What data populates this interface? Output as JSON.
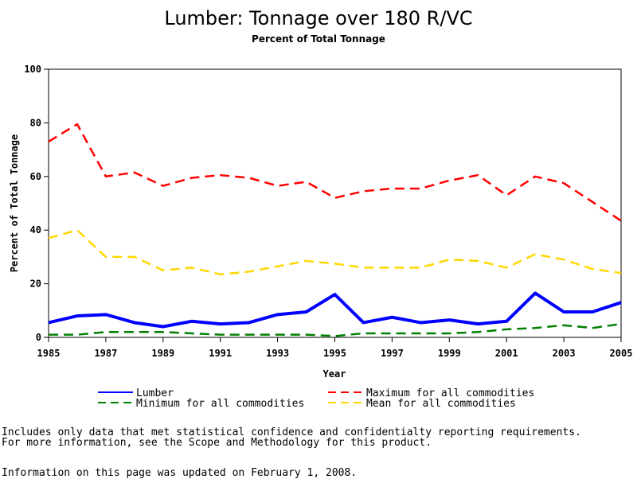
{
  "chart_data": {
    "type": "line",
    "title": "Lumber: Tonnage over 180 R/VC",
    "subtitle": "Percent of Total Tonnage",
    "xlabel": "Year",
    "ylabel": "Percent of Total Tonnage",
    "xlim": [
      1985,
      2005
    ],
    "ylim": [
      0,
      100
    ],
    "x_ticks": [
      1985,
      1987,
      1989,
      1991,
      1993,
      1995,
      1997,
      1999,
      2001,
      2003,
      2005
    ],
    "y_ticks": [
      0,
      20,
      40,
      60,
      80,
      100
    ],
    "grid": false,
    "legend_position": "bottom",
    "x": [
      1985,
      1986,
      1987,
      1988,
      1989,
      1990,
      1991,
      1992,
      1993,
      1994,
      1995,
      1996,
      1997,
      1998,
      1999,
      2000,
      2001,
      2002,
      2003,
      2004,
      2005
    ],
    "series": [
      {
        "name": "Lumber",
        "color": "#0000ff",
        "style": "solid",
        "values": [
          5.5,
          8,
          8.5,
          5.5,
          4,
          6,
          5,
          5.5,
          8.5,
          9.5,
          16,
          5.5,
          7.5,
          5.5,
          6.5,
          5,
          6,
          16.5,
          9.5,
          9.5,
          13
        ]
      },
      {
        "name": "Maximum for all commodities",
        "color": "#ff0000",
        "style": "dashed",
        "values": [
          73,
          79.5,
          60,
          61.5,
          56.5,
          59.5,
          60.5,
          59.5,
          56.5,
          58,
          52,
          54.5,
          55.5,
          55.5,
          58.5,
          60.5,
          53,
          60,
          57.5,
          50.5,
          43.5
        ]
      },
      {
        "name": "Minimum for all commodities",
        "color": "#008000",
        "style": "dashed",
        "values": [
          1,
          1,
          2,
          2,
          2,
          1.5,
          1,
          1,
          1,
          1,
          0.5,
          1.5,
          1.5,
          1.5,
          1.5,
          2,
          3,
          3.5,
          4.5,
          3.5,
          5
        ]
      },
      {
        "name": "Mean for all commodities",
        "color": "#ffd700",
        "style": "dashed",
        "values": [
          37,
          40,
          30,
          30,
          25,
          26,
          23.5,
          24.5,
          26.5,
          28.5,
          27.5,
          26,
          26,
          26,
          29,
          28.5,
          26,
          31,
          29,
          25.5,
          24
        ]
      }
    ]
  },
  "footnotes": [
    "Includes only data that met statistical confidence and confidentialty reporting requirements.",
    "For more information, see the Scope and Methodology for this product.",
    "Information on this page was updated on February 1, 2008."
  ]
}
